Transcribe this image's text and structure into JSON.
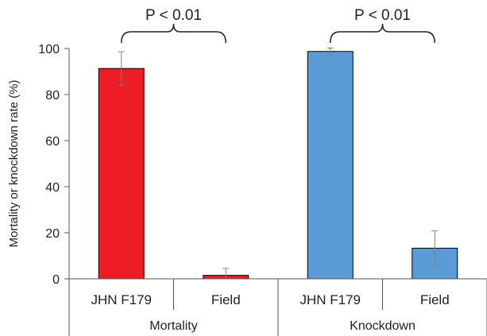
{
  "chart_data": {
    "type": "bar",
    "title": "",
    "xlabel": "",
    "ylabel": "Mortality or knockdown rate (%)",
    "ylim": [
      0,
      100
    ],
    "yticks": [
      0,
      20,
      40,
      60,
      80,
      100
    ],
    "grid": false,
    "groups": [
      {
        "name": "Mortality",
        "color": "#ee1c25"
      },
      {
        "name": "Knockdown",
        "color": "#5b9bd5"
      }
    ],
    "bars": [
      {
        "group": "Mortality",
        "category": "JHN F179",
        "value": 91.3,
        "error": 7.3,
        "color": "#ee1c25"
      },
      {
        "group": "Mortality",
        "category": "Field",
        "value": 1.5,
        "error": 3.0,
        "color": "#ee1c25"
      },
      {
        "group": "Knockdown",
        "category": "JHN F179",
        "value": 98.7,
        "error": 1.5,
        "color": "#5b9bd5"
      },
      {
        "group": "Knockdown",
        "category": "Field",
        "value": 13.3,
        "error": 7.5,
        "color": "#5b9bd5"
      }
    ],
    "annotations": [
      {
        "text": "P < 0.01",
        "group": "Mortality"
      },
      {
        "text": "P < 0.01",
        "group": "Knockdown"
      }
    ]
  }
}
